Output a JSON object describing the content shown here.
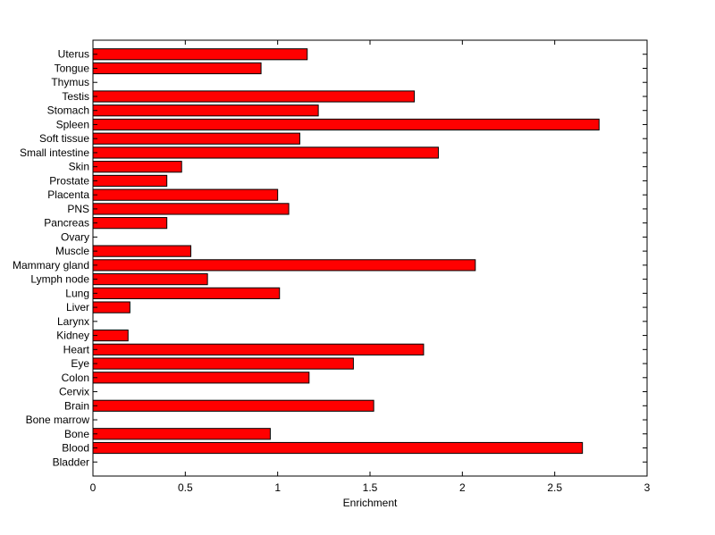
{
  "chart_data": {
    "type": "bar",
    "orientation": "horizontal",
    "categories": [
      "Bladder",
      "Blood",
      "Bone",
      "Bone marrow",
      "Brain",
      "Cervix",
      "Colon",
      "Eye",
      "Heart",
      "Kidney",
      "Larynx",
      "Liver",
      "Lung",
      "Lymph node",
      "Mammary gland",
      "Muscle",
      "Ovary",
      "Pancreas",
      "PNS",
      "Placenta",
      "Prostate",
      "Skin",
      "Small intestine",
      "Soft tissue",
      "Spleen",
      "Stomach",
      "Testis",
      "Thymus",
      "Tongue",
      "Uterus"
    ],
    "values": [
      0,
      2.65,
      0.96,
      0,
      1.52,
      0,
      1.17,
      1.41,
      1.79,
      0.19,
      0,
      0.2,
      1.01,
      0.62,
      2.07,
      0.53,
      0,
      0.4,
      1.06,
      1.0,
      0.4,
      0.48,
      1.87,
      1.12,
      2.74,
      1.22,
      1.74,
      0,
      0.91,
      1.16
    ],
    "title": "",
    "xlabel": "Enrichment",
    "ylabel": "",
    "xlim": [
      0,
      3
    ],
    "xticks": [
      0,
      0.5,
      1,
      1.5,
      2,
      2.5,
      3
    ],
    "xtick_labels": [
      "0",
      "0.5",
      "1",
      "1.5",
      "2",
      "2.5",
      "3"
    ],
    "grid": false,
    "bar_color": "#ff0000",
    "edge_color": "#000000"
  }
}
